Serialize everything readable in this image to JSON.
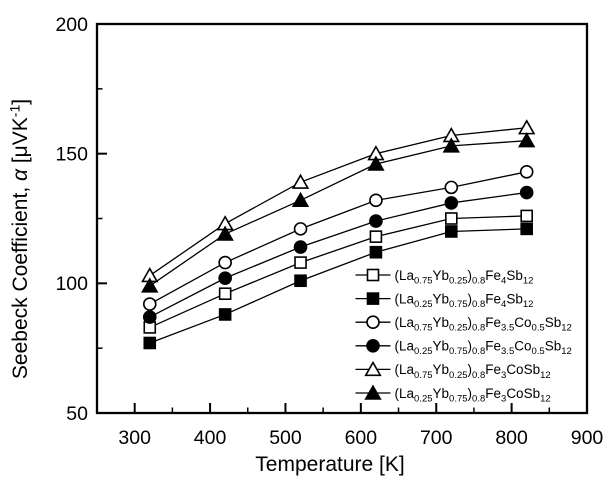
{
  "figure": {
    "background": "#ffffff",
    "foreground": "#000000"
  },
  "chart_data": {
    "type": "line",
    "title": "",
    "xlabel": "Temperature [K]",
    "ylabel": "Seebeck Coefficient, α [μVK⁻¹]",
    "ylabel_segments": [
      {
        "t": "Seebeck Coefficient, "
      },
      {
        "it": "α"
      },
      {
        "t": " [μVK"
      },
      {
        "sup": "-1"
      },
      {
        "t": "]"
      }
    ],
    "xlim": [
      250,
      900
    ],
    "ylim": [
      50,
      200
    ],
    "x_major_ticks": [
      300,
      400,
      500,
      600,
      700,
      800,
      900
    ],
    "x_minor_ticks": [
      350,
      450,
      550,
      650,
      750,
      850
    ],
    "y_major_ticks": [
      50,
      100,
      150,
      200
    ],
    "y_minor_ticks": [
      75,
      125,
      175
    ],
    "grid": false,
    "legend_position": "inside lower right",
    "x": [
      320,
      420,
      520,
      620,
      720,
      820
    ],
    "series": [
      {
        "name": "(La0.75Yb0.25)0.8Fe4Sb12",
        "marker": "open-square",
        "values": [
          83,
          96,
          108,
          118,
          125,
          126
        ],
        "label_segments": [
          {
            "t": "(La"
          },
          {
            "sub": "0.75"
          },
          {
            "t": "Yb"
          },
          {
            "sub": "0.25"
          },
          {
            "t": ")"
          },
          {
            "sub": "0.8"
          },
          {
            "t": "Fe"
          },
          {
            "sub": "4"
          },
          {
            "t": "Sb"
          },
          {
            "sub": "12"
          }
        ]
      },
      {
        "name": "(La0.25Yb0.75)0.8Fe4Sb12",
        "marker": "filled-square",
        "values": [
          77,
          88,
          101,
          112,
          120,
          121
        ],
        "label_segments": [
          {
            "t": "(La"
          },
          {
            "sub": "0.25"
          },
          {
            "t": "Yb"
          },
          {
            "sub": "0.75"
          },
          {
            "t": ")"
          },
          {
            "sub": "0.8"
          },
          {
            "t": "Fe"
          },
          {
            "sub": "4"
          },
          {
            "t": "Sb"
          },
          {
            "sub": "12"
          }
        ]
      },
      {
        "name": "(La0.75Yb0.25)0.8Fe3.5Co0.5Sb12",
        "marker": "open-circle",
        "values": [
          92,
          108,
          121,
          132,
          137,
          143
        ],
        "label_segments": [
          {
            "t": "(La"
          },
          {
            "sub": "0.75"
          },
          {
            "t": "Yb"
          },
          {
            "sub": "0.25"
          },
          {
            "t": ")"
          },
          {
            "sub": "0.8"
          },
          {
            "t": "Fe"
          },
          {
            "sub": "3.5"
          },
          {
            "t": "Co"
          },
          {
            "sub": "0.5"
          },
          {
            "t": "Sb"
          },
          {
            "sub": "12"
          }
        ]
      },
      {
        "name": "(La0.25Yb0.75)0.8Fe3.5Co0.5Sb12",
        "marker": "filled-circle",
        "values": [
          87,
          102,
          114,
          124,
          131,
          135
        ],
        "label_segments": [
          {
            "t": "(La"
          },
          {
            "sub": "0.25"
          },
          {
            "t": "Yb"
          },
          {
            "sub": "0.75"
          },
          {
            "t": ")"
          },
          {
            "sub": "0.8"
          },
          {
            "t": "Fe"
          },
          {
            "sub": "3.5"
          },
          {
            "t": "Co"
          },
          {
            "sub": "0.5"
          },
          {
            "t": "Sb"
          },
          {
            "sub": "12"
          }
        ]
      },
      {
        "name": "(La0.75Yb0.25)0.8Fe3CoSb12",
        "marker": "open-triangle",
        "values": [
          103,
          123,
          139,
          150,
          157,
          160
        ],
        "label_segments": [
          {
            "t": "(La"
          },
          {
            "sub": "0.75"
          },
          {
            "t": "Yb"
          },
          {
            "sub": "0.25"
          },
          {
            "t": ")"
          },
          {
            "sub": "0.8"
          },
          {
            "t": "Fe"
          },
          {
            "sub": "3"
          },
          {
            "t": "CoSb"
          },
          {
            "sub": "12"
          }
        ]
      },
      {
        "name": "(La0.25Yb0.75)0.8Fe3CoSb12",
        "marker": "filled-triangle",
        "values": [
          99,
          119,
          132,
          146,
          153,
          155
        ],
        "label_segments": [
          {
            "t": "(La"
          },
          {
            "sub": "0.25"
          },
          {
            "t": "Yb"
          },
          {
            "sub": "0.75"
          },
          {
            "t": ")"
          },
          {
            "sub": "0.8"
          },
          {
            "t": "Fe"
          },
          {
            "sub": "3"
          },
          {
            "t": "CoSb"
          },
          {
            "sub": "12"
          }
        ]
      }
    ]
  }
}
